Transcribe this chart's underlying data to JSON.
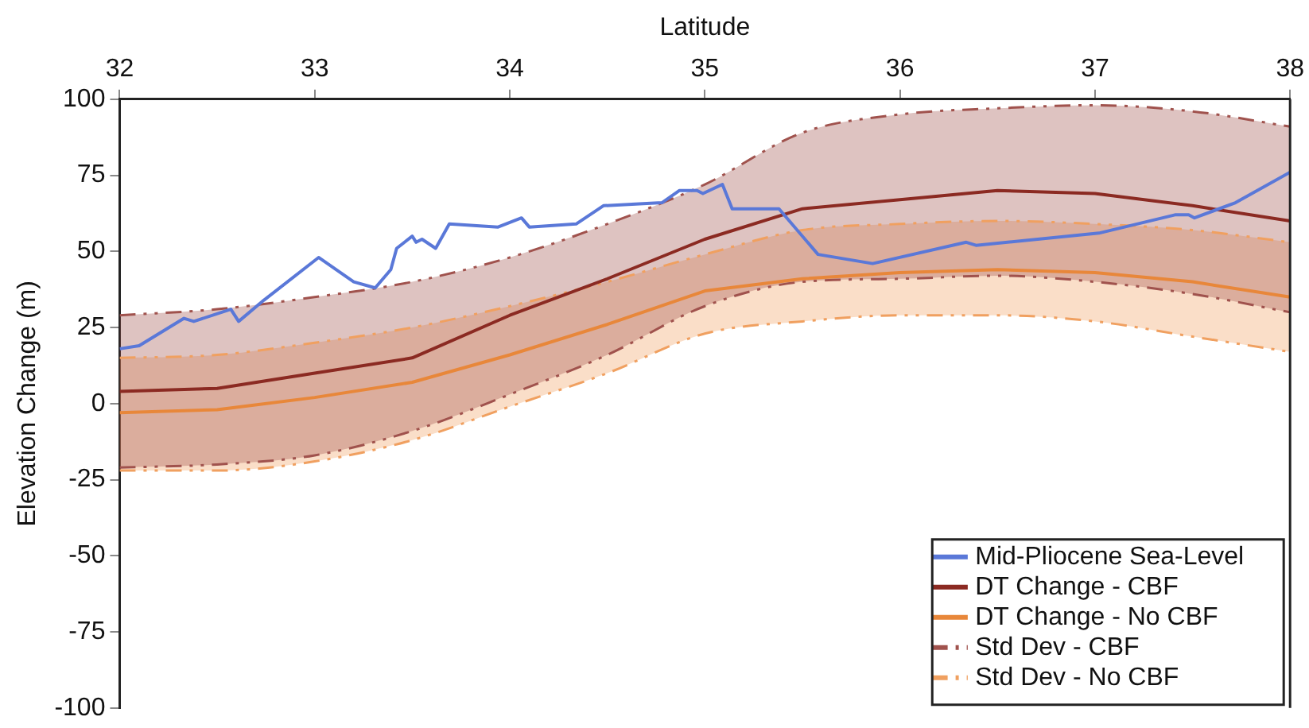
{
  "chart_data": {
    "type": "line",
    "xlabel": "Latitude",
    "ylabel": "Elevation Change (m)",
    "xlim": [
      32,
      38
    ],
    "xticks": [
      32,
      33,
      34,
      35,
      36,
      37,
      38
    ],
    "ylim": [
      -100,
      100
    ],
    "yticks": [
      -100,
      -75,
      -50,
      -25,
      0,
      25,
      50,
      75,
      100
    ],
    "grid": false,
    "legend": "bottom right",
    "marker": "none",
    "x": [
      32,
      32.5,
      33,
      33.5,
      34,
      34.5,
      35,
      35.5,
      36,
      36.5,
      37,
      37.5,
      38
    ],
    "series": [
      {
        "name": "Mid-Pliocene Sea-Level",
        "type": "line",
        "color": "#5a78d8",
        "line_style": "solid",
        "x": [
          32.0,
          32.1,
          32.33,
          32.38,
          32.57,
          32.61,
          32.74,
          33.02,
          33.2,
          33.31,
          33.39,
          33.42,
          33.5,
          33.52,
          33.55,
          33.62,
          33.69,
          33.94,
          34.06,
          34.1,
          34.34,
          34.48,
          34.78,
          34.87,
          34.96,
          34.99,
          35.09,
          35.14,
          35.38,
          35.58,
          35.86,
          36.34,
          36.39,
          37.02,
          37.41,
          37.48,
          37.51,
          37.72,
          38.0
        ],
        "values": [
          18,
          19,
          28,
          27,
          31,
          27,
          34,
          48,
          40,
          38,
          44,
          51,
          55,
          53,
          54,
          51,
          59,
          58,
          61,
          58,
          59,
          65,
          66,
          70,
          70,
          69,
          72,
          64,
          64,
          49,
          46,
          53,
          52,
          56,
          62,
          62,
          61,
          66,
          76
        ]
      },
      {
        "name": "DT Change - CBF",
        "type": "line",
        "color": "#8b2a22",
        "line_style": "solid",
        "values": [
          4,
          5,
          10,
          15,
          29,
          41,
          54,
          64,
          67,
          70,
          69,
          65,
          60
        ]
      },
      {
        "name": "DT Change - No CBF",
        "type": "line",
        "color": "#e8873a",
        "line_style": "solid",
        "values": [
          -3,
          -2,
          2,
          7,
          16,
          26,
          37,
          41,
          43,
          44,
          43,
          40,
          35
        ]
      },
      {
        "name": "Std Dev - CBF",
        "type": "line",
        "color": "#a0524d",
        "line_style": "dashed",
        "values": [
          29,
          31,
          35,
          40,
          48,
          59,
          72,
          89,
          95,
          97,
          98,
          96,
          91
        ],
        "lower": [
          -21,
          -20,
          -17,
          -9,
          3,
          16,
          32,
          40,
          41,
          42,
          40,
          36,
          30
        ],
        "upper": [
          29,
          31,
          35,
          40,
          48,
          59,
          72,
          89,
          95,
          97,
          98,
          96,
          91
        ]
      },
      {
        "type": "line",
        "color": "#a0524d",
        "line_style": "dashed",
        "values": [
          -21,
          -20,
          -17,
          -9,
          3,
          16,
          32,
          40,
          41,
          42,
          40,
          36,
          30
        ]
      },
      {
        "name": "Std Dev - No CBF",
        "type": "line",
        "color": "#f0a060",
        "line_style": "dashed",
        "values": [
          15,
          16,
          20,
          25,
          32,
          40,
          49,
          57,
          59,
          60,
          59,
          57,
          53
        ],
        "lower": [
          -22,
          -22,
          -19,
          -12,
          -1,
          10,
          23,
          27,
          29,
          29,
          27,
          22,
          17
        ],
        "upper": [
          15,
          16,
          20,
          25,
          32,
          40,
          49,
          57,
          59,
          60,
          59,
          57,
          53
        ]
      },
      {
        "type": "line",
        "color": "#f0a060",
        "line_style": "dashed",
        "values": [
          -22,
          -22,
          -19,
          -12,
          -1,
          10,
          23,
          27,
          29,
          29,
          27,
          22,
          17
        ]
      }
    ]
  }
}
